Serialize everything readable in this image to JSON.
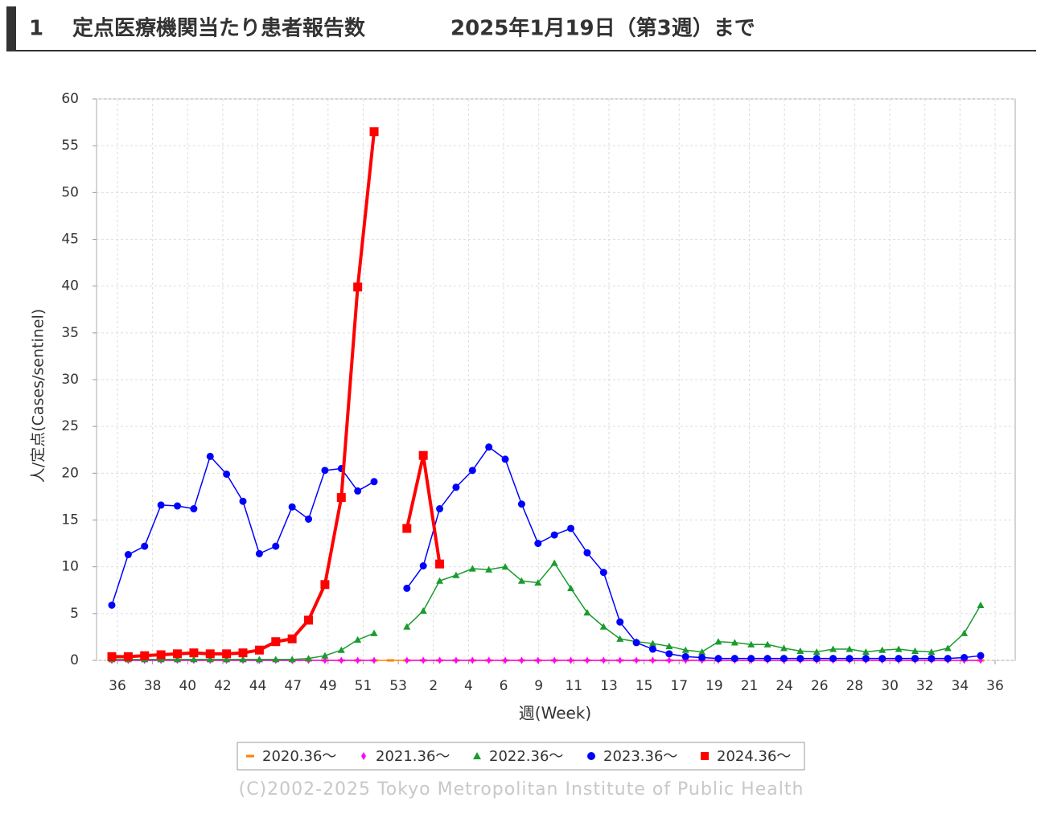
{
  "header": {
    "number": "1",
    "title": "定点医療機関当たり患者報告数",
    "date": "2025年1月19日（第3週）まで"
  },
  "chart_data": {
    "type": "line",
    "y_label": "人/定点(Cases/sentinel)",
    "x_label": "週(Week)",
    "xtick_labels": [
      "36",
      "38",
      "40",
      "42",
      "44",
      "47",
      "49",
      "51",
      "53",
      "2",
      "4",
      "6",
      "9",
      "11",
      "13",
      "15",
      "17",
      "19",
      "21",
      "24",
      "26",
      "28",
      "30",
      "32",
      "34",
      "36"
    ],
    "ylim": [
      0,
      60
    ],
    "yticks": [
      0,
      5,
      10,
      15,
      20,
      25,
      30,
      35,
      40,
      45,
      50,
      55,
      60
    ],
    "grid": true,
    "series": [
      {
        "name": "2020.36～",
        "color": "#ff8000",
        "marker": "dash",
        "values": [
          0,
          0,
          0,
          0,
          0,
          0,
          0,
          0,
          0,
          0,
          0,
          0,
          0,
          0,
          0,
          0,
          0,
          0,
          0,
          0,
          0,
          0,
          0,
          0,
          0,
          0,
          0,
          0,
          0,
          0,
          0,
          0,
          0,
          0,
          0,
          0,
          0,
          0,
          0,
          0,
          0,
          0,
          0,
          0,
          0,
          0,
          0,
          0,
          0,
          0,
          0,
          0,
          0,
          0
        ]
      },
      {
        "name": "2021.36～",
        "color": "#ff00ff",
        "marker": "diamond",
        "values": [
          0,
          0,
          0,
          0,
          0,
          0,
          0,
          0,
          0,
          0,
          0,
          0,
          0,
          0,
          0,
          0,
          0,
          null,
          0,
          0,
          0,
          0,
          0,
          0,
          0,
          0,
          0,
          0,
          0,
          0,
          0,
          0,
          0,
          0,
          0,
          0,
          0,
          0,
          0,
          0,
          0,
          0,
          0,
          0,
          0,
          0,
          0,
          0,
          0,
          0,
          0,
          0,
          0,
          0
        ]
      },
      {
        "name": "2022.36～",
        "color": "#1a9b2e",
        "marker": "triangle",
        "values": [
          0.1,
          0.1,
          0.1,
          0.1,
          0.1,
          0.1,
          0.1,
          0.1,
          0.1,
          0.1,
          0.1,
          0.1,
          0.2,
          0.5,
          1.1,
          2.2,
          2.9,
          null,
          3.6,
          5.3,
          8.5,
          9.1,
          9.8,
          9.7,
          10.0,
          8.5,
          8.3,
          10.4,
          7.7,
          5.1,
          3.6,
          2.3,
          2.0,
          1.8,
          1.5,
          1.1,
          0.9,
          2.0,
          1.9,
          1.7,
          1.7,
          1.3,
          1.0,
          0.9,
          1.2,
          1.2,
          0.9,
          1.1,
          1.2,
          1.0,
          0.9,
          1.3,
          2.9,
          5.9
        ]
      },
      {
        "name": "2023.36～",
        "color": "#0000ff",
        "marker": "circle",
        "values": [
          5.9,
          11.3,
          12.2,
          16.6,
          16.5,
          16.2,
          21.8,
          19.9,
          17.0,
          11.4,
          12.2,
          16.4,
          15.1,
          20.3,
          20.5,
          18.1,
          19.1,
          null,
          7.7,
          10.1,
          16.2,
          18.5,
          20.3,
          22.8,
          21.5,
          16.7,
          12.5,
          13.4,
          14.1,
          11.5,
          9.4,
          4.1,
          1.9,
          1.2,
          0.7,
          0.4,
          0.3,
          0.2,
          0.2,
          0.2,
          0.2,
          0.2,
          0.2,
          0.2,
          0.2,
          0.2,
          0.2,
          0.2,
          0.2,
          0.2,
          0.2,
          0.2,
          0.3,
          0.5
        ]
      },
      {
        "name": "2024.36～",
        "color": "#ff0000",
        "marker": "square",
        "width": 4,
        "values": [
          0.4,
          0.4,
          0.5,
          0.6,
          0.7,
          0.8,
          0.7,
          0.7,
          0.8,
          1.1,
          2.0,
          2.3,
          4.3,
          8.1,
          17.4,
          39.9,
          56.5,
          null,
          14.1,
          21.9,
          10.3,
          null,
          null,
          null,
          null,
          null,
          null,
          null,
          null,
          null,
          null,
          null,
          null,
          null,
          null,
          null,
          null,
          null,
          null,
          null,
          null,
          null,
          null,
          null,
          null,
          null,
          null,
          null,
          null,
          null,
          null,
          null,
          null,
          null
        ]
      }
    ],
    "copyright": "(C)2002-2025 Tokyo Metropolitan Institute of Public Health"
  }
}
